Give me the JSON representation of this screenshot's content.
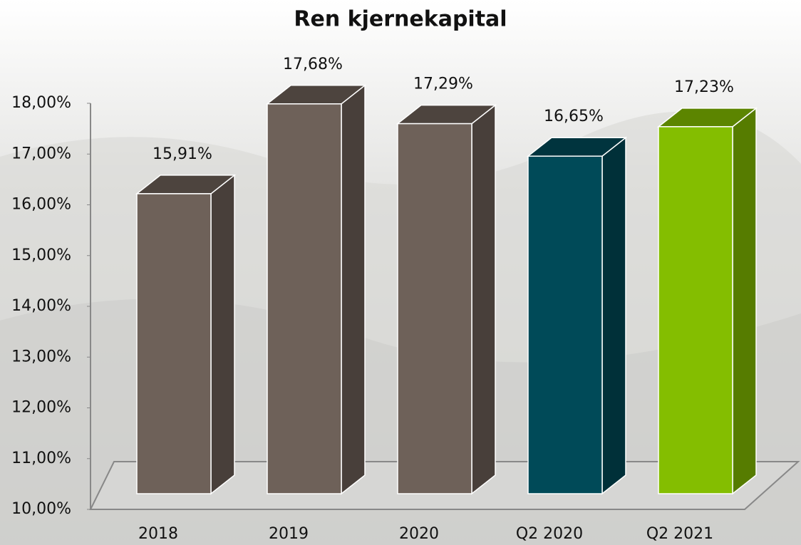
{
  "chart_data": {
    "type": "bar3d",
    "title": "Ren kjernekapital",
    "categories": [
      "2018",
      "2019",
      "2020",
      "Q2 2020",
      "Q2 2021"
    ],
    "values": [
      15.91,
      17.68,
      17.29,
      16.65,
      17.23
    ],
    "value_labels": [
      "15,91%",
      "17,68%",
      "17,29%",
      "16,65%",
      "17,23%"
    ],
    "colors": [
      "#6e6159",
      "#6e6159",
      "#6e6159",
      "#004a58",
      "#84be00"
    ],
    "ylim": [
      10,
      18
    ],
    "yticks": [
      {
        "value": 10,
        "label": "10,00%"
      },
      {
        "value": 11,
        "label": "11,00%"
      },
      {
        "value": 12,
        "label": "12,00%"
      },
      {
        "value": 13,
        "label": "13,00%"
      },
      {
        "value": 14,
        "label": "14,00%"
      },
      {
        "value": 15,
        "label": "15,00%"
      },
      {
        "value": 16,
        "label": "16,00%"
      },
      {
        "value": 17,
        "label": "17,00%"
      },
      {
        "value": 18,
        "label": "18,00%"
      }
    ]
  }
}
